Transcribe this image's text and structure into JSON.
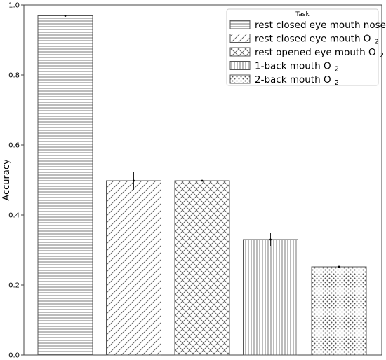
{
  "chart_data": {
    "type": "bar",
    "ylabel": "Accuracy",
    "ylim": [
      0.0,
      1.0
    ],
    "yticks": [
      "0.0",
      "0.2",
      "0.4",
      "0.6",
      "0.8",
      "1.0"
    ],
    "grid": false,
    "legend": {
      "title": "Task",
      "placement": "top-right"
    },
    "bars": [
      {
        "name": "rest closed eye mouth nose",
        "sub": "",
        "value": 0.969,
        "err": 0.002,
        "pattern": "horizontal"
      },
      {
        "name": "rest closed eye mouth O",
        "sub": "2",
        "value": 0.498,
        "err": 0.026,
        "pattern": "diagonal"
      },
      {
        "name": "rest opened eye mouth O",
        "sub": "2",
        "value": 0.498,
        "err": 0.002,
        "pattern": "crosshatch"
      },
      {
        "name": "1-back mouth O",
        "sub": "2",
        "value": 0.33,
        "err": 0.018,
        "pattern": "vertical"
      },
      {
        "name": "2-back mouth O",
        "sub": "2",
        "value": 0.252,
        "err": 0.003,
        "pattern": "dots"
      }
    ]
  }
}
